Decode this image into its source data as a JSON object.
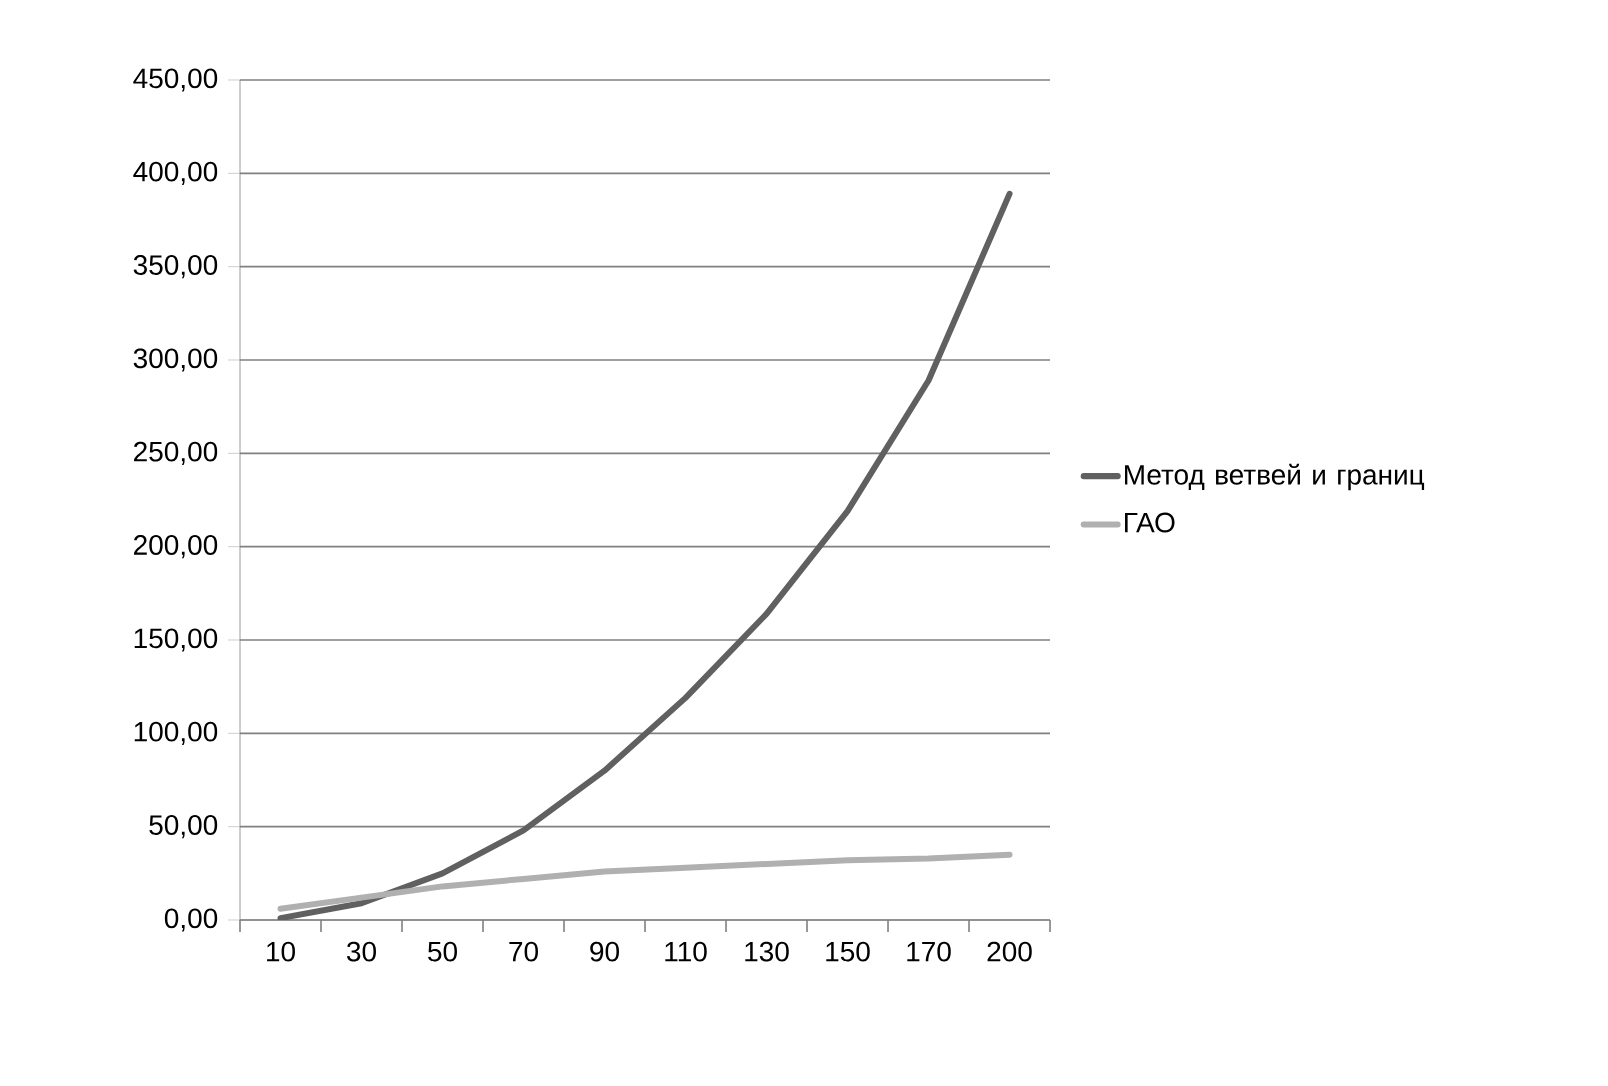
{
  "chart_data": {
    "type": "line",
    "categories": [
      "10",
      "30",
      "50",
      "70",
      "90",
      "110",
      "130",
      "150",
      "170",
      "200"
    ],
    "series": [
      {
        "name": "Метод ветвей и границ",
        "color": "#606060",
        "values": [
          1,
          9,
          25,
          48,
          80,
          119,
          164,
          219,
          289,
          389
        ]
      },
      {
        "name": "ГАО",
        "color": "#b0b0b0",
        "values": [
          6,
          12,
          18,
          22,
          26,
          28,
          30,
          32,
          33,
          35
        ]
      }
    ],
    "ylim": [
      0,
      450
    ],
    "yticks": [
      {
        "value": 0,
        "label": "0,00"
      },
      {
        "value": 50,
        "label": "50,00"
      },
      {
        "value": 100,
        "label": "100,00"
      },
      {
        "value": 150,
        "label": "150,00"
      },
      {
        "value": 200,
        "label": "200,00"
      },
      {
        "value": 250,
        "label": "250,00"
      },
      {
        "value": 300,
        "label": "300,00"
      },
      {
        "value": 350,
        "label": "350,00"
      },
      {
        "value": 400,
        "label": "400,00"
      },
      {
        "value": 450,
        "label": "450,00"
      }
    ],
    "grid": "y",
    "legend": "right",
    "marker": "none",
    "line_style": "solid"
  }
}
